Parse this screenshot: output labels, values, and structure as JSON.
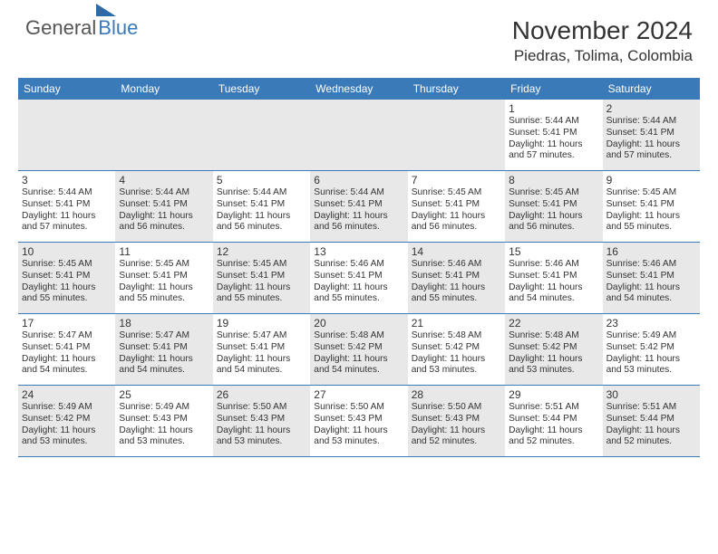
{
  "brand": {
    "part1": "General",
    "part2": "Blue"
  },
  "title": "November 2024",
  "location": "Piedras, Tolima, Colombia",
  "colors": {
    "header_bg": "#3b7ab8",
    "shade_bg": "#e8e8e8",
    "border": "#3b7ab8",
    "text": "#333333"
  },
  "dayNames": [
    "Sunday",
    "Monday",
    "Tuesday",
    "Wednesday",
    "Thursday",
    "Friday",
    "Saturday"
  ],
  "startOffset": 5,
  "days": [
    {
      "n": 1,
      "rise": "5:44 AM",
      "set": "5:41 PM",
      "dl": "11 hours and 57 minutes."
    },
    {
      "n": 2,
      "rise": "5:44 AM",
      "set": "5:41 PM",
      "dl": "11 hours and 57 minutes."
    },
    {
      "n": 3,
      "rise": "5:44 AM",
      "set": "5:41 PM",
      "dl": "11 hours and 57 minutes."
    },
    {
      "n": 4,
      "rise": "5:44 AM",
      "set": "5:41 PM",
      "dl": "11 hours and 56 minutes."
    },
    {
      "n": 5,
      "rise": "5:44 AM",
      "set": "5:41 PM",
      "dl": "11 hours and 56 minutes."
    },
    {
      "n": 6,
      "rise": "5:44 AM",
      "set": "5:41 PM",
      "dl": "11 hours and 56 minutes."
    },
    {
      "n": 7,
      "rise": "5:45 AM",
      "set": "5:41 PM",
      "dl": "11 hours and 56 minutes."
    },
    {
      "n": 8,
      "rise": "5:45 AM",
      "set": "5:41 PM",
      "dl": "11 hours and 56 minutes."
    },
    {
      "n": 9,
      "rise": "5:45 AM",
      "set": "5:41 PM",
      "dl": "11 hours and 55 minutes."
    },
    {
      "n": 10,
      "rise": "5:45 AM",
      "set": "5:41 PM",
      "dl": "11 hours and 55 minutes."
    },
    {
      "n": 11,
      "rise": "5:45 AM",
      "set": "5:41 PM",
      "dl": "11 hours and 55 minutes."
    },
    {
      "n": 12,
      "rise": "5:45 AM",
      "set": "5:41 PM",
      "dl": "11 hours and 55 minutes."
    },
    {
      "n": 13,
      "rise": "5:46 AM",
      "set": "5:41 PM",
      "dl": "11 hours and 55 minutes."
    },
    {
      "n": 14,
      "rise": "5:46 AM",
      "set": "5:41 PM",
      "dl": "11 hours and 55 minutes."
    },
    {
      "n": 15,
      "rise": "5:46 AM",
      "set": "5:41 PM",
      "dl": "11 hours and 54 minutes."
    },
    {
      "n": 16,
      "rise": "5:46 AM",
      "set": "5:41 PM",
      "dl": "11 hours and 54 minutes."
    },
    {
      "n": 17,
      "rise": "5:47 AM",
      "set": "5:41 PM",
      "dl": "11 hours and 54 minutes."
    },
    {
      "n": 18,
      "rise": "5:47 AM",
      "set": "5:41 PM",
      "dl": "11 hours and 54 minutes."
    },
    {
      "n": 19,
      "rise": "5:47 AM",
      "set": "5:41 PM",
      "dl": "11 hours and 54 minutes."
    },
    {
      "n": 20,
      "rise": "5:48 AM",
      "set": "5:42 PM",
      "dl": "11 hours and 54 minutes."
    },
    {
      "n": 21,
      "rise": "5:48 AM",
      "set": "5:42 PM",
      "dl": "11 hours and 53 minutes."
    },
    {
      "n": 22,
      "rise": "5:48 AM",
      "set": "5:42 PM",
      "dl": "11 hours and 53 minutes."
    },
    {
      "n": 23,
      "rise": "5:49 AM",
      "set": "5:42 PM",
      "dl": "11 hours and 53 minutes."
    },
    {
      "n": 24,
      "rise": "5:49 AM",
      "set": "5:42 PM",
      "dl": "11 hours and 53 minutes."
    },
    {
      "n": 25,
      "rise": "5:49 AM",
      "set": "5:43 PM",
      "dl": "11 hours and 53 minutes."
    },
    {
      "n": 26,
      "rise": "5:50 AM",
      "set": "5:43 PM",
      "dl": "11 hours and 53 minutes."
    },
    {
      "n": 27,
      "rise": "5:50 AM",
      "set": "5:43 PM",
      "dl": "11 hours and 53 minutes."
    },
    {
      "n": 28,
      "rise": "5:50 AM",
      "set": "5:43 PM",
      "dl": "11 hours and 52 minutes."
    },
    {
      "n": 29,
      "rise": "5:51 AM",
      "set": "5:44 PM",
      "dl": "11 hours and 52 minutes."
    },
    {
      "n": 30,
      "rise": "5:51 AM",
      "set": "5:44 PM",
      "dl": "11 hours and 52 minutes."
    }
  ],
  "labels": {
    "sunrise": "Sunrise:",
    "sunset": "Sunset:",
    "daylight": "Daylight:"
  }
}
